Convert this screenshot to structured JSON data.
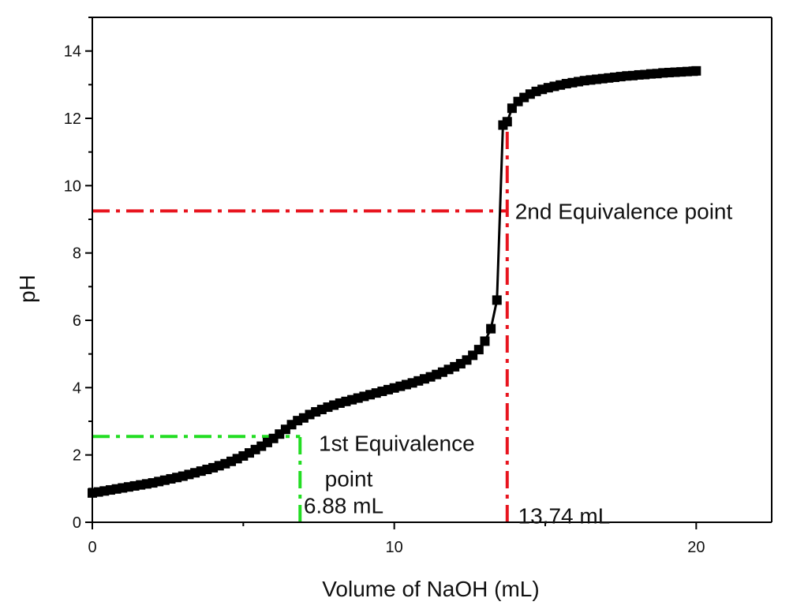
{
  "chart_data": {
    "type": "scatter",
    "title": "",
    "xlabel": "Volume of NaOH (mL)",
    "ylabel": "pH",
    "xlim": [
      0,
      22.5
    ],
    "ylim": [
      0,
      15
    ],
    "x_ticks": [
      0,
      10,
      20
    ],
    "y_ticks": [
      0,
      2,
      4,
      6,
      8,
      10,
      12,
      14
    ],
    "x_tick_labels": [
      "0",
      "10",
      "20"
    ],
    "y_tick_labels": [
      "0",
      "2",
      "4",
      "6",
      "8",
      "10",
      "12",
      "14"
    ],
    "grid": false,
    "series": [
      {
        "name": "Titration curve",
        "color": "#000000",
        "marker": "square",
        "x": [
          0.0,
          0.2,
          0.4,
          0.6,
          0.8,
          1.0,
          1.2,
          1.4,
          1.6,
          1.8,
          2.0,
          2.2,
          2.4,
          2.6,
          2.8,
          3.0,
          3.2,
          3.4,
          3.6,
          3.8,
          4.0,
          4.2,
          4.4,
          4.6,
          4.8,
          5.0,
          5.2,
          5.4,
          5.6,
          5.8,
          6.0,
          6.2,
          6.4,
          6.6,
          6.8,
          7.0,
          7.2,
          7.4,
          7.6,
          7.8,
          8.0,
          8.2,
          8.4,
          8.6,
          8.8,
          9.0,
          9.2,
          9.4,
          9.6,
          9.8,
          10.0,
          10.2,
          10.4,
          10.6,
          10.8,
          11.0,
          11.2,
          11.4,
          11.6,
          11.8,
          12.0,
          12.2,
          12.4,
          12.6,
          12.8,
          13.0,
          13.2,
          13.4,
          13.6,
          13.74,
          13.9,
          14.1,
          14.3,
          14.5,
          14.7,
          14.9,
          15.1,
          15.3,
          15.5,
          15.7,
          15.9,
          16.1,
          16.3,
          16.5,
          16.7,
          16.9,
          17.1,
          17.3,
          17.5,
          17.7,
          17.9,
          18.1,
          18.3,
          18.5,
          18.7,
          18.9,
          19.1,
          19.3,
          19.5,
          19.7,
          19.9,
          20.0
        ],
        "y": [
          0.87,
          0.9,
          0.93,
          0.96,
          0.99,
          1.02,
          1.05,
          1.08,
          1.11,
          1.14,
          1.17,
          1.21,
          1.25,
          1.29,
          1.33,
          1.37,
          1.42,
          1.47,
          1.52,
          1.57,
          1.62,
          1.68,
          1.74,
          1.81,
          1.89,
          1.97,
          2.06,
          2.16,
          2.26,
          2.37,
          2.49,
          2.62,
          2.76,
          2.9,
          3.02,
          3.1,
          3.2,
          3.28,
          3.35,
          3.42,
          3.48,
          3.54,
          3.59,
          3.64,
          3.69,
          3.74,
          3.79,
          3.84,
          3.89,
          3.94,
          3.99,
          4.04,
          4.09,
          4.14,
          4.2,
          4.26,
          4.32,
          4.39,
          4.46,
          4.54,
          4.62,
          4.71,
          4.82,
          4.96,
          5.13,
          5.38,
          5.75,
          6.6,
          11.8,
          11.9,
          12.3,
          12.5,
          12.62,
          12.72,
          12.8,
          12.86,
          12.91,
          12.95,
          12.99,
          13.03,
          13.06,
          13.09,
          13.12,
          13.14,
          13.16,
          13.18,
          13.2,
          13.22,
          13.24,
          13.26,
          13.27,
          13.29,
          13.3,
          13.32,
          13.33,
          13.35,
          13.36,
          13.37,
          13.38,
          13.39,
          13.4,
          13.41
        ]
      }
    ],
    "reference_lines": [
      {
        "name": "1st equivalence horizontal",
        "orientation": "horizontal",
        "y": 2.55,
        "x_from": 0,
        "x_to": 6.88,
        "color": "#22dd22",
        "style": "dash-dot"
      },
      {
        "name": "1st equivalence vertical",
        "orientation": "vertical",
        "x": 6.88,
        "y_from": 0,
        "y_to": 2.55,
        "color": "#22dd22",
        "style": "dash-dot"
      },
      {
        "name": "2nd equivalence horizontal",
        "orientation": "horizontal",
        "y": 9.25,
        "x_from": 0,
        "x_to": 13.74,
        "color": "#e8141e",
        "style": "dash-dot"
      },
      {
        "name": "2nd equivalence vertical",
        "orientation": "vertical",
        "x": 13.74,
        "y_from": 0,
        "y_to": 12.0,
        "color": "#e8141e",
        "style": "dash-dot"
      }
    ],
    "annotations": [
      {
        "name": "second-equivalence-label",
        "text": "2nd Equivalence point",
        "x": 14.0,
        "y": 9.25
      },
      {
        "name": "first-equivalence-label-line1",
        "text": "1st Equivalence",
        "x": 7.5,
        "y": 2.35
      },
      {
        "name": "first-equivalence-label-line2",
        "text": "point",
        "x": 7.7,
        "y": 1.3
      },
      {
        "name": "first-volume-label",
        "text": "6.88 mL",
        "x": 7.0,
        "y": 0.5
      },
      {
        "name": "second-volume-label",
        "text": "13.74 mL",
        "x": 14.1,
        "y": 0.2
      }
    ]
  }
}
